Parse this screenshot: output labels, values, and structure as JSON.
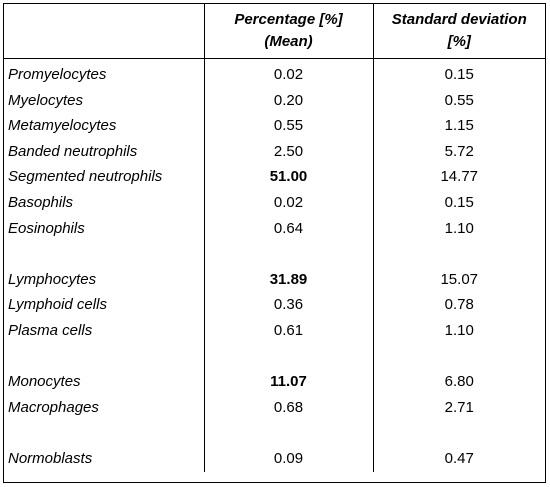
{
  "table": {
    "headers": {
      "name": "",
      "mean_line1": "Percentage [%]",
      "mean_line2": "(Mean)",
      "sd_line1": "Standard deviation",
      "sd_line2": "[%]"
    },
    "rows": [
      {
        "name": "Promyelocytes",
        "mean": "0.02",
        "sd": "0.15",
        "bold": false
      },
      {
        "name": "Myelocytes",
        "mean": "0.20",
        "sd": "0.55",
        "bold": false
      },
      {
        "name": "Metamyelocytes",
        "mean": "0.55",
        "sd": "1.15",
        "bold": false
      },
      {
        "name": "Banded neutrophils",
        "mean": "2.50",
        "sd": "5.72",
        "bold": false
      },
      {
        "name": "Segmented neutrophils",
        "mean": "51.00",
        "sd": "14.77",
        "bold": true
      },
      {
        "name": "Basophils",
        "mean": "0.02",
        "sd": "0.15",
        "bold": false
      },
      {
        "name": "Eosinophils",
        "mean": "0.64",
        "sd": "1.10",
        "bold": false
      },
      {
        "name": "",
        "mean": "",
        "sd": "",
        "bold": false
      },
      {
        "name": "Lymphocytes",
        "mean": "31.89",
        "sd": "15.07",
        "bold": true
      },
      {
        "name": "Lymphoid cells",
        "mean": "0.36",
        "sd": "0.78",
        "bold": false
      },
      {
        "name": "Plasma cells",
        "mean": "0.61",
        "sd": "1.10",
        "bold": false
      },
      {
        "name": "",
        "mean": "",
        "sd": "",
        "bold": false
      },
      {
        "name": "Monocytes",
        "mean": "11.07",
        "sd": "6.80",
        "bold": true
      },
      {
        "name": "Macrophages",
        "mean": "0.68",
        "sd": "2.71",
        "bold": false
      },
      {
        "name": "",
        "mean": "",
        "sd": "",
        "bold": false
      },
      {
        "name": "Normoblasts",
        "mean": "0.09",
        "sd": "0.47",
        "bold": false
      }
    ]
  }
}
